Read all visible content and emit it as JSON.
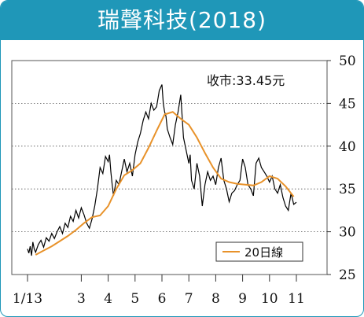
{
  "header": {
    "title": "瑞聲科技(2018)"
  },
  "colors": {
    "header_bg": "#1f97b8",
    "price_line": "#000000",
    "ma_line": "#e8922a",
    "grid": "#555555"
  },
  "chart_data": {
    "type": "line",
    "title": "瑞聲科技(2018)",
    "annotation": "收市:33.45元",
    "ylim": [
      25,
      50
    ],
    "y_ticks": [
      25,
      30,
      35,
      40,
      45,
      50
    ],
    "grid": "horizontal-dotted",
    "x_tick_labels": [
      "1/13",
      "3",
      "4",
      "5",
      "6",
      "7",
      "8",
      "9",
      "10",
      "11"
    ],
    "x_tick_positions": [
      0,
      2,
      3,
      4,
      5,
      6,
      7,
      8,
      9,
      10
    ],
    "x_range": [
      0,
      10
    ],
    "legend": {
      "entry": "20日線",
      "placement": "bottom-right"
    },
    "series": [
      {
        "x": [
          0,
          0.05,
          0.1,
          0.15,
          0.2,
          0.25,
          0.3,
          0.4,
          0.5,
          0.6,
          0.7,
          0.8,
          0.9,
          1.0,
          1.1,
          1.2,
          1.3,
          1.4,
          1.5,
          1.6,
          1.7,
          1.8,
          1.9,
          2.0,
          2.1,
          2.2,
          2.3,
          2.4,
          2.5,
          2.6,
          2.7,
          2.8,
          2.9,
          3.0,
          3.05,
          3.1,
          3.15,
          3.2,
          3.3,
          3.4,
          3.5,
          3.6,
          3.7,
          3.8,
          3.9,
          4.0,
          4.1,
          4.2,
          4.3,
          4.4,
          4.5,
          4.6,
          4.7,
          4.8,
          4.9,
          5.0,
          5.05,
          5.1,
          5.15,
          5.2,
          5.3,
          5.4,
          5.5,
          5.6,
          5.7,
          5.8,
          5.9,
          6.0,
          6.05,
          6.1,
          6.2,
          6.3,
          6.4,
          6.5,
          6.6,
          6.7,
          6.8,
          6.9,
          7.0,
          7.1,
          7.2,
          7.3,
          7.4,
          7.5,
          7.6,
          7.7,
          7.8,
          7.9,
          8.0,
          8.1,
          8.2,
          8.3,
          8.4,
          8.5,
          8.6,
          8.7,
          8.8,
          8.9,
          9.0,
          9.1,
          9.2,
          9.3,
          9.4,
          9.5,
          9.6,
          9.7,
          9.8,
          9.9,
          10.0
        ],
        "values": [
          28.0,
          27.5,
          28.3,
          27.2,
          28.8,
          28.0,
          27.6,
          28.5,
          29.0,
          28.2,
          29.3,
          28.9,
          29.8,
          29.2,
          30.0,
          30.6,
          29.8,
          31.0,
          30.5,
          31.8,
          31.2,
          32.5,
          31.6,
          32.8,
          32.0,
          31.0,
          30.4,
          31.5,
          33.0,
          35.0,
          37.5,
          36.8,
          38.8,
          38.2,
          39.0,
          37.0,
          35.5,
          34.2,
          36.0,
          35.5,
          37.0,
          38.5,
          37.0,
          38.0,
          36.5,
          39.0,
          40.5,
          41.5,
          43.0,
          44.0,
          43.2,
          45.0,
          44.2,
          44.6,
          46.5,
          47.2,
          45.0,
          44.0,
          43.5,
          42.0,
          41.0,
          40.2,
          42.5,
          44.0,
          46.0,
          41.0,
          39.5,
          38.0,
          39.0,
          36.0,
          35.0,
          38.0,
          36.5,
          33.0,
          35.5,
          37.0,
          36.0,
          36.5,
          35.5,
          37.5,
          38.6,
          36.0,
          35.0,
          33.5,
          34.5,
          34.8,
          35.5,
          36.0,
          38.5,
          37.5,
          35.5,
          35.0,
          34.2,
          38.0,
          38.6,
          37.5,
          37.0,
          36.5,
          35.8,
          36.5,
          35.0,
          34.5,
          35.5,
          34.0,
          33.0,
          32.5,
          34.5,
          33.2,
          33.45
        ]
      },
      {
        "name": "20日線",
        "x": [
          0.3,
          0.6,
          0.9,
          1.2,
          1.5,
          1.8,
          2.1,
          2.4,
          2.7,
          3.0,
          3.3,
          3.6,
          3.9,
          4.2,
          4.5,
          4.8,
          5.1,
          5.4,
          5.7,
          6.0,
          6.3,
          6.6,
          6.9,
          7.2,
          7.5,
          7.8,
          8.1,
          8.4,
          8.7,
          9.0,
          9.3,
          9.6,
          9.9
        ],
        "values": [
          27.3,
          27.8,
          28.3,
          28.9,
          29.5,
          30.2,
          31.0,
          31.7,
          31.9,
          33.0,
          35.0,
          36.6,
          37.2,
          38.0,
          39.8,
          41.8,
          43.7,
          44.0,
          43.2,
          42.5,
          41.0,
          39.2,
          37.5,
          36.2,
          35.8,
          35.6,
          35.5,
          35.4,
          35.8,
          36.5,
          36.2,
          35.3,
          34.1
        ]
      }
    ]
  }
}
